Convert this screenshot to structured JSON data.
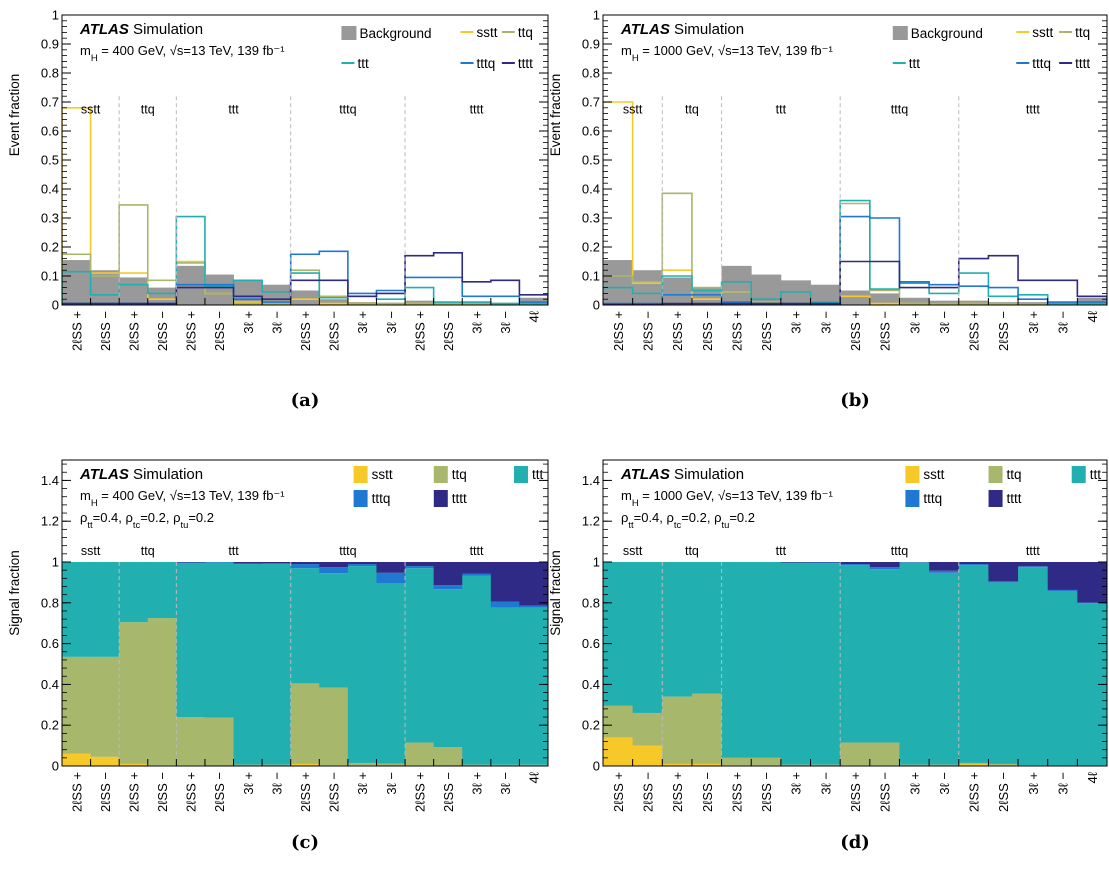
{
  "figure": {
    "panels": [
      {
        "letter": "(a)"
      },
      {
        "letter": "(b)"
      },
      {
        "letter": "(c)"
      },
      {
        "letter": "(d)"
      }
    ]
  },
  "colors": {
    "background": "#999999",
    "sstt": "#f7c928",
    "ttq": "#a7b76b",
    "ttt": "#22afb0",
    "tttq": "#1f78d1",
    "tttt": "#2e2a85",
    "frame": "#000000",
    "divider": "#bbbbbb"
  },
  "chart_data": [
    {
      "type": "bar",
      "panel": "(a)",
      "ylabel": "Event fraction",
      "ylim": [
        0,
        1
      ],
      "yticks": [
        0,
        0.1,
        0.2,
        0.3,
        0.4,
        0.5,
        0.6,
        0.7,
        0.8,
        0.9,
        1
      ],
      "ytick_labels": [
        "0",
        "0.1",
        "0.2",
        "0.3",
        "0.4",
        "0.5",
        "0.6",
        "0.7",
        "0.8",
        "0.9",
        "1"
      ],
      "categories": [
        "2ℓSS +",
        "2ℓSS −",
        "2ℓSS +",
        "2ℓSS −",
        "2ℓSS +",
        "2ℓSS −",
        "3ℓ +",
        "3ℓ −",
        "2ℓSS +",
        "2ℓSS −",
        "3ℓ +",
        "3ℓ −",
        "2ℓSS +",
        "2ℓSS −",
        "3ℓ +",
        "3ℓ −",
        "4ℓ"
      ],
      "groups": [
        {
          "label": "sstt",
          "start": 0,
          "end": 2
        },
        {
          "label": "ttq",
          "start": 2,
          "end": 4
        },
        {
          "label": "ttt",
          "start": 4,
          "end": 8
        },
        {
          "label": "tttq",
          "start": 8,
          "end": 12
        },
        {
          "label": "tttt",
          "start": 12,
          "end": 17
        }
      ],
      "annotation": {
        "brand": "ATLAS",
        "tag": "Simulation",
        "line1": "m_H = 400 GeV, √s=13 TeV, 139 fb⁻¹"
      },
      "legend": [
        {
          "name": "Background",
          "style": "fill"
        },
        {
          "name": "sstt",
          "style": "line"
        },
        {
          "name": "ttq",
          "style": "line"
        },
        {
          "name": "ttt",
          "style": "line"
        },
        {
          "name": "tttq",
          "style": "line"
        },
        {
          "name": "tttt",
          "style": "line"
        }
      ],
      "series": [
        {
          "name": "Background",
          "values": [
            0.155,
            0.12,
            0.095,
            0.06,
            0.135,
            0.105,
            0.085,
            0.07,
            0.05,
            0.02,
            0.01,
            0.008,
            0.015,
            0.01,
            0.01,
            0.008,
            0.025
          ]
        },
        {
          "name": "sstt",
          "values": [
            0.68,
            0.11,
            0.11,
            0.02,
            0.15,
            0.04,
            0.01,
            0.005,
            0.02,
            0.005,
            0.005,
            0.002,
            0.005,
            0.002,
            0.002,
            0.001,
            0.001
          ]
        },
        {
          "name": "ttq",
          "values": [
            0.175,
            0.1,
            0.345,
            0.085,
            0.145,
            0.04,
            0.005,
            0.005,
            0.12,
            0.03,
            0.005,
            0.005,
            0.005,
            0.005,
            0.001,
            0.001,
            0.001
          ]
        },
        {
          "name": "ttt",
          "values": [
            0.115,
            0.035,
            0.07,
            0.04,
            0.305,
            0.065,
            0.085,
            0.045,
            0.11,
            0.025,
            0.03,
            0.02,
            0.06,
            0.01,
            0.01,
            0.005,
            0.005
          ]
        },
        {
          "name": "tttq",
          "values": [
            0.005,
            0.005,
            0.005,
            0.005,
            0.07,
            0.07,
            0.02,
            0.01,
            0.175,
            0.185,
            0.04,
            0.05,
            0.095,
            0.095,
            0.03,
            0.03,
            0.01
          ]
        },
        {
          "name": "tttt",
          "values": [
            0.005,
            0.005,
            0.005,
            0.005,
            0.06,
            0.06,
            0.03,
            0.02,
            0.085,
            0.085,
            0.03,
            0.04,
            0.17,
            0.18,
            0.08,
            0.085,
            0.035
          ]
        }
      ]
    },
    {
      "type": "bar",
      "panel": "(b)",
      "ylabel": "Event fraction",
      "ylim": [
        0,
        1
      ],
      "yticks": [
        0,
        0.1,
        0.2,
        0.3,
        0.4,
        0.5,
        0.6,
        0.7,
        0.8,
        0.9,
        1
      ],
      "ytick_labels": [
        "0",
        "0.1",
        "0.2",
        "0.3",
        "0.4",
        "0.5",
        "0.6",
        "0.7",
        "0.8",
        "0.9",
        "1"
      ],
      "categories": [
        "2ℓSS +",
        "2ℓSS −",
        "2ℓSS +",
        "2ℓSS −",
        "2ℓSS +",
        "2ℓSS −",
        "3ℓ +",
        "3ℓ −",
        "2ℓSS +",
        "2ℓSS −",
        "3ℓ +",
        "3ℓ −",
        "2ℓSS +",
        "2ℓSS −",
        "3ℓ +",
        "3ℓ −",
        "4ℓ"
      ],
      "groups": [
        {
          "label": "sstt",
          "start": 0,
          "end": 2
        },
        {
          "label": "ttq",
          "start": 2,
          "end": 4
        },
        {
          "label": "ttt",
          "start": 4,
          "end": 8
        },
        {
          "label": "tttq",
          "start": 8,
          "end": 12
        },
        {
          "label": "tttt",
          "start": 12,
          "end": 17
        }
      ],
      "annotation": {
        "brand": "ATLAS",
        "tag": "Simulation",
        "line1": "m_H = 1000 GeV, √s=13 TeV, 139 fb⁻¹"
      },
      "legend": [
        {
          "name": "Background",
          "style": "fill"
        },
        {
          "name": "sstt",
          "style": "line"
        },
        {
          "name": "ttq",
          "style": "line"
        },
        {
          "name": "ttt",
          "style": "line"
        },
        {
          "name": "tttq",
          "style": "line"
        },
        {
          "name": "tttt",
          "style": "line"
        }
      ],
      "series": [
        {
          "name": "Background",
          "values": [
            0.155,
            0.12,
            0.095,
            0.06,
            0.135,
            0.105,
            0.085,
            0.07,
            0.05,
            0.04,
            0.025,
            0.015,
            0.015,
            0.01,
            0.01,
            0.008,
            0.025
          ]
        },
        {
          "name": "sstt",
          "values": [
            0.7,
            0.075,
            0.12,
            0.02,
            0.045,
            0.01,
            0.005,
            0.002,
            0.03,
            0.005,
            0.005,
            0.002,
            0.005,
            0.002,
            0.002,
            0.001,
            0.001
          ]
        },
        {
          "name": "ttq",
          "values": [
            0.1,
            0.08,
            0.385,
            0.06,
            0.045,
            0.01,
            0.005,
            0.002,
            0.35,
            0.05,
            0.005,
            0.005,
            0.005,
            0.005,
            0.001,
            0.001,
            0.001
          ]
        },
        {
          "name": "ttt",
          "values": [
            0.06,
            0.04,
            0.1,
            0.05,
            0.08,
            0.02,
            0.045,
            0.01,
            0.36,
            0.055,
            0.075,
            0.04,
            0.11,
            0.03,
            0.035,
            0.005,
            0.005
          ]
        },
        {
          "name": "tttq",
          "values": [
            0.005,
            0.005,
            0.035,
            0.035,
            0.01,
            0.005,
            0.005,
            0.005,
            0.305,
            0.3,
            0.08,
            0.07,
            0.065,
            0.06,
            0.02,
            0.01,
            0.01
          ]
        },
        {
          "name": "tttt",
          "values": [
            0.002,
            0.002,
            0.005,
            0.005,
            0.005,
            0.005,
            0.005,
            0.005,
            0.15,
            0.15,
            0.06,
            0.06,
            0.16,
            0.17,
            0.085,
            0.085,
            0.03
          ]
        }
      ]
    },
    {
      "type": "bar",
      "stacked": true,
      "panel": "(c)",
      "ylabel": "Signal fraction",
      "ylim": [
        0,
        1.5
      ],
      "yticks": [
        0,
        0.2,
        0.4,
        0.6,
        0.8,
        1,
        1.2,
        1.4
      ],
      "ytick_labels": [
        "0",
        "0.2",
        "0.4",
        "0.6",
        "0.8",
        "1",
        "1.2",
        "1.4"
      ],
      "categories": [
        "2ℓSS +",
        "2ℓSS −",
        "2ℓSS +",
        "2ℓSS −",
        "2ℓSS +",
        "2ℓSS −",
        "3ℓ +",
        "3ℓ −",
        "2ℓSS +",
        "2ℓSS −",
        "3ℓ +",
        "3ℓ −",
        "2ℓSS +",
        "2ℓSS −",
        "3ℓ +",
        "3ℓ −",
        "4ℓ"
      ],
      "groups": [
        {
          "label": "sstt",
          "start": 0,
          "end": 2
        },
        {
          "label": "ttq",
          "start": 2,
          "end": 4
        },
        {
          "label": "ttt",
          "start": 4,
          "end": 8
        },
        {
          "label": "tttq",
          "start": 8,
          "end": 12
        },
        {
          "label": "tttt",
          "start": 12,
          "end": 17
        }
      ],
      "annotation": {
        "brand": "ATLAS",
        "tag": "Simulation",
        "line1": "m_H = 400 GeV, √s=13 TeV, 139 fb⁻¹",
        "line2": "ρ_tt=0.4, ρ_tc=0.2, ρ_tu=0.2"
      },
      "legend": [
        {
          "name": "sstt",
          "style": "fill"
        },
        {
          "name": "ttq",
          "style": "fill"
        },
        {
          "name": "ttt",
          "style": "fill"
        },
        {
          "name": "tttq",
          "style": "fill"
        },
        {
          "name": "tttt",
          "style": "fill"
        }
      ],
      "series": [
        {
          "name": "sstt",
          "values": [
            0.06,
            0.045,
            0.01,
            0.005,
            0.005,
            0.002,
            0.002,
            0.002,
            0.01,
            0.005,
            0.005,
            0.002,
            0.005,
            0.002,
            0.002,
            0.001,
            0.001
          ]
        },
        {
          "name": "ttq",
          "values": [
            0.475,
            0.49,
            0.695,
            0.72,
            0.235,
            0.235,
            0.005,
            0.005,
            0.395,
            0.38,
            0.01,
            0.01,
            0.11,
            0.09,
            0.005,
            0.005,
            0.005
          ]
        },
        {
          "name": "ttt",
          "values": [
            0.465,
            0.465,
            0.295,
            0.275,
            0.755,
            0.76,
            0.983,
            0.983,
            0.565,
            0.56,
            0.965,
            0.885,
            0.855,
            0.775,
            0.925,
            0.77,
            0.77
          ]
        },
        {
          "name": "tttq",
          "values": [
            0,
            0,
            0,
            0,
            0.003,
            0.003,
            0.003,
            0.005,
            0.02,
            0.03,
            0.01,
            0.05,
            0.01,
            0.02,
            0.01,
            0.03,
            0.01
          ]
        },
        {
          "name": "tttt",
          "values": [
            0,
            0,
            0,
            0,
            0.002,
            0,
            0.007,
            0.005,
            0.01,
            0.025,
            0.01,
            0.053,
            0.02,
            0.113,
            0.058,
            0.194,
            0.214
          ]
        }
      ]
    },
    {
      "type": "bar",
      "stacked": true,
      "panel": "(d)",
      "ylabel": "Signal fraction",
      "ylim": [
        0,
        1.5
      ],
      "yticks": [
        0,
        0.2,
        0.4,
        0.6,
        0.8,
        1,
        1.2,
        1.4
      ],
      "ytick_labels": [
        "0",
        "0.2",
        "0.4",
        "0.6",
        "0.8",
        "1",
        "1.2",
        "1.4"
      ],
      "categories": [
        "2ℓSS +",
        "2ℓSS −",
        "2ℓSS +",
        "2ℓSS −",
        "2ℓSS +",
        "2ℓSS −",
        "3ℓ +",
        "3ℓ −",
        "2ℓSS +",
        "2ℓSS −",
        "3ℓ +",
        "3ℓ −",
        "2ℓSS +",
        "2ℓSS −",
        "3ℓ +",
        "3ℓ −",
        "4ℓ"
      ],
      "groups": [
        {
          "label": "sstt",
          "start": 0,
          "end": 2
        },
        {
          "label": "ttq",
          "start": 2,
          "end": 4
        },
        {
          "label": "ttt",
          "start": 4,
          "end": 8
        },
        {
          "label": "tttq",
          "start": 8,
          "end": 12
        },
        {
          "label": "tttt",
          "start": 12,
          "end": 17
        }
      ],
      "annotation": {
        "brand": "ATLAS",
        "tag": "Simulation",
        "line1": "m_H = 1000 GeV, √s=13 TeV, 139 fb⁻¹",
        "line2": "ρ_tt=0.4, ρ_tc=0.2, ρ_tu=0.2"
      },
      "legend": [
        {
          "name": "sstt",
          "style": "fill"
        },
        {
          "name": "ttq",
          "style": "fill"
        },
        {
          "name": "ttt",
          "style": "fill"
        },
        {
          "name": "tttq",
          "style": "fill"
        },
        {
          "name": "tttt",
          "style": "fill"
        }
      ],
      "series": [
        {
          "name": "sstt",
          "values": [
            0.14,
            0.1,
            0.01,
            0.01,
            0.005,
            0.005,
            0.002,
            0.002,
            0.005,
            0.005,
            0.002,
            0.002,
            0.01,
            0.005,
            0.002,
            0.001,
            0.001
          ]
        },
        {
          "name": "ttq",
          "values": [
            0.155,
            0.16,
            0.33,
            0.345,
            0.035,
            0.035,
            0.005,
            0.005,
            0.11,
            0.11,
            0.005,
            0.005,
            0.005,
            0.005,
            0.002,
            0.002,
            0.002
          ]
        },
        {
          "name": "ttt",
          "values": [
            0.705,
            0.74,
            0.66,
            0.645,
            0.96,
            0.96,
            0.99,
            0.988,
            0.87,
            0.85,
            0.99,
            0.94,
            0.97,
            0.89,
            0.97,
            0.855,
            0.795
          ]
        },
        {
          "name": "tttq",
          "values": [
            0,
            0,
            0,
            0,
            0,
            0,
            0,
            0.003,
            0.005,
            0.01,
            0.002,
            0.01,
            0.005,
            0.005,
            0.005,
            0.005,
            0.003
          ]
        },
        {
          "name": "tttt",
          "values": [
            0,
            0,
            0,
            0,
            0,
            0,
            0.003,
            0.002,
            0.01,
            0.025,
            0.001,
            0.043,
            0.01,
            0.095,
            0.021,
            0.137,
            0.199
          ]
        }
      ]
    }
  ]
}
